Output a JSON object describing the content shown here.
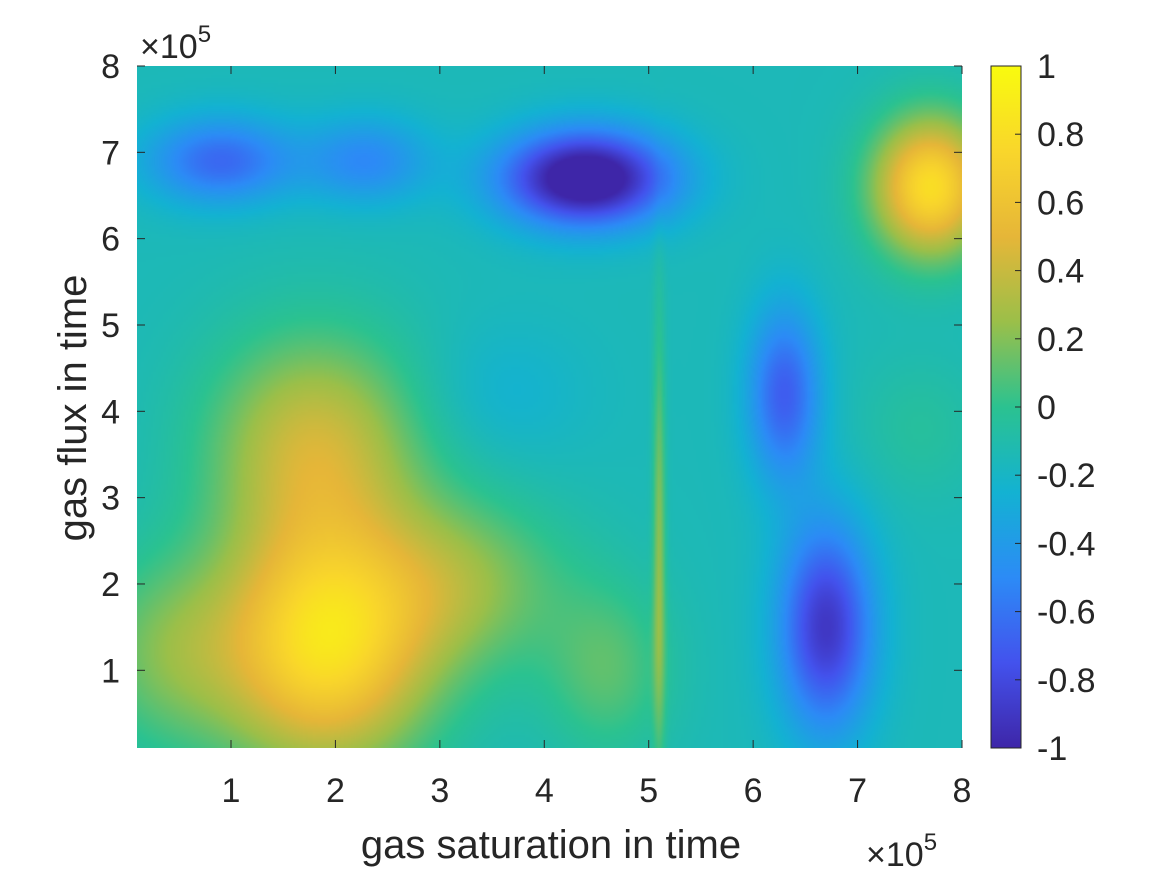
{
  "chart_data": {
    "type": "heatmap",
    "title": "",
    "xlabel": "gas saturation in time",
    "ylabel": "gas flux in time",
    "x_exponent_label": "×10",
    "x_exponent_power": "5",
    "y_exponent_label": "×10",
    "y_exponent_power": "5",
    "xlim": [
      0.1,
      8.0
    ],
    "ylim": [
      0.1,
      8.0
    ],
    "x_scale_factor": 100000,
    "y_scale_factor": 100000,
    "xticks": [
      1,
      2,
      3,
      4,
      5,
      6,
      7,
      8
    ],
    "yticks": [
      1,
      2,
      3,
      4,
      5,
      6,
      7,
      8
    ],
    "xtick_labels": [
      "1",
      "2",
      "3",
      "4",
      "5",
      "6",
      "7",
      "8"
    ],
    "ytick_labels": [
      "1",
      "2",
      "3",
      "4",
      "5",
      "6",
      "7",
      "8"
    ],
    "colormap": "parula",
    "colormap_stops": [
      "#3E26A8",
      "#4352ED",
      "#2C8BF6",
      "#13B2D2",
      "#2BC290",
      "#9BBF49",
      "#E6B638",
      "#F9D62B",
      "#F9FB0E"
    ],
    "clim": [
      -1,
      1
    ],
    "colorbar": {
      "ticks": [
        1,
        0.8,
        0.6,
        0.4,
        0.2,
        0,
        -0.2,
        -0.4,
        -0.6,
        -0.8,
        -1
      ],
      "tick_labels": [
        "1",
        "0.8",
        "0.6",
        "0.4",
        "0.2",
        "0",
        "-0.2",
        "-0.4",
        "-0.6",
        "-0.8",
        "-1"
      ],
      "location": "right"
    },
    "grid": false,
    "legend": "none",
    "blobs": [
      {
        "x": 1.9,
        "y": 1.3,
        "sx": 1.0,
        "sy": 1.4,
        "v": 0.95
      },
      {
        "x": 0.4,
        "y": 1.2,
        "sx": 0.8,
        "sy": 1.1,
        "v": 0.3
      },
      {
        "x": 1.8,
        "y": 3.6,
        "sx": 1.0,
        "sy": 1.3,
        "v": 0.55
      },
      {
        "x": 3.2,
        "y": 2.0,
        "sx": 1.0,
        "sy": 1.0,
        "v": 0.35
      },
      {
        "x": 4.6,
        "y": 1.0,
        "sx": 0.6,
        "sy": 1.0,
        "v": 0.25
      },
      {
        "x": 4.4,
        "y": 6.7,
        "sx": 0.8,
        "sy": 0.55,
        "v": -1.05
      },
      {
        "x": 0.9,
        "y": 6.9,
        "sx": 0.7,
        "sy": 0.5,
        "v": -0.5
      },
      {
        "x": 2.3,
        "y": 6.9,
        "sx": 0.6,
        "sy": 0.5,
        "v": -0.35
      },
      {
        "x": 3.6,
        "y": 4.2,
        "sx": 0.8,
        "sy": 0.8,
        "v": -0.1
      },
      {
        "x": 7.7,
        "y": 6.6,
        "sx": 0.55,
        "sy": 0.8,
        "v": 0.95
      },
      {
        "x": 6.7,
        "y": 1.5,
        "sx": 0.45,
        "sy": 1.2,
        "v": -0.75
      },
      {
        "x": 6.3,
        "y": 4.2,
        "sx": 0.35,
        "sy": 1.0,
        "v": -0.55
      },
      {
        "x": 7.6,
        "y": 3.8,
        "sx": 0.6,
        "sy": 0.8,
        "v": 0.1
      },
      {
        "x": 5.1,
        "y": 2.5,
        "sx": 0.06,
        "sy": 2.5,
        "v": 0.35
      }
    ]
  }
}
